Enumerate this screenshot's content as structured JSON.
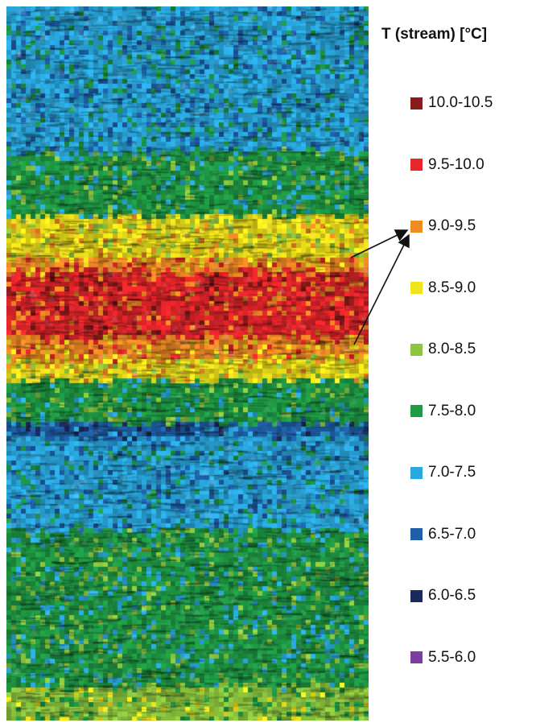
{
  "chart_data": {
    "type": "heatmap",
    "legend": {
      "title": "T (stream) [°C]",
      "position": "right",
      "entries": [
        {
          "label": "10.0-10.5",
          "min": 10.0,
          "max": 10.5,
          "color": "#8b1a1a"
        },
        {
          "label": "9.5-10.0",
          "min": 9.5,
          "max": 10.0,
          "color": "#e8262b"
        },
        {
          "label": "9.0-9.5",
          "min": 9.0,
          "max": 9.5,
          "color": "#f08a24"
        },
        {
          "label": "8.5-9.0",
          "min": 8.5,
          "max": 9.0,
          "color": "#f2e41b"
        },
        {
          "label": "8.0-8.5",
          "min": 8.0,
          "max": 8.5,
          "color": "#8cc63e"
        },
        {
          "label": "7.5-8.0",
          "min": 7.5,
          "max": 8.0,
          "color": "#1f9a45"
        },
        {
          "label": "7.0-7.5",
          "min": 7.0,
          "max": 7.5,
          "color": "#2aa9e0"
        },
        {
          "label": "6.5-7.0",
          "min": 6.5,
          "max": 7.0,
          "color": "#1f5fa8"
        },
        {
          "label": "6.0-6.5",
          "min": 6.0,
          "max": 6.5,
          "color": "#1b2a5c"
        },
        {
          "label": "5.5-6.0",
          "min": 5.5,
          "max": 6.0,
          "color": "#7b3fa0"
        }
      ]
    },
    "bands": [
      {
        "from": 0.0,
        "to": 0.2,
        "value": 7.25
      },
      {
        "from": 0.2,
        "to": 0.29,
        "value": 7.9
      },
      {
        "from": 0.29,
        "to": 0.35,
        "value": 8.7
      },
      {
        "from": 0.35,
        "to": 0.37,
        "value": 9.2
      },
      {
        "from": 0.37,
        "to": 0.46,
        "value": 9.8
      },
      {
        "from": 0.46,
        "to": 0.49,
        "value": 9.2
      },
      {
        "from": 0.49,
        "to": 0.52,
        "value": 8.7
      },
      {
        "from": 0.52,
        "to": 0.58,
        "value": 7.8
      },
      {
        "from": 0.58,
        "to": 0.6,
        "value": 6.8
      },
      {
        "from": 0.6,
        "to": 0.73,
        "value": 7.2
      },
      {
        "from": 0.73,
        "to": 0.95,
        "value": 7.8
      },
      {
        "from": 0.95,
        "to": 1.0,
        "value": 8.2
      }
    ],
    "arrows": [
      {
        "from_band_value": 9.0,
        "to_legend": "9.0-9.5"
      }
    ]
  }
}
